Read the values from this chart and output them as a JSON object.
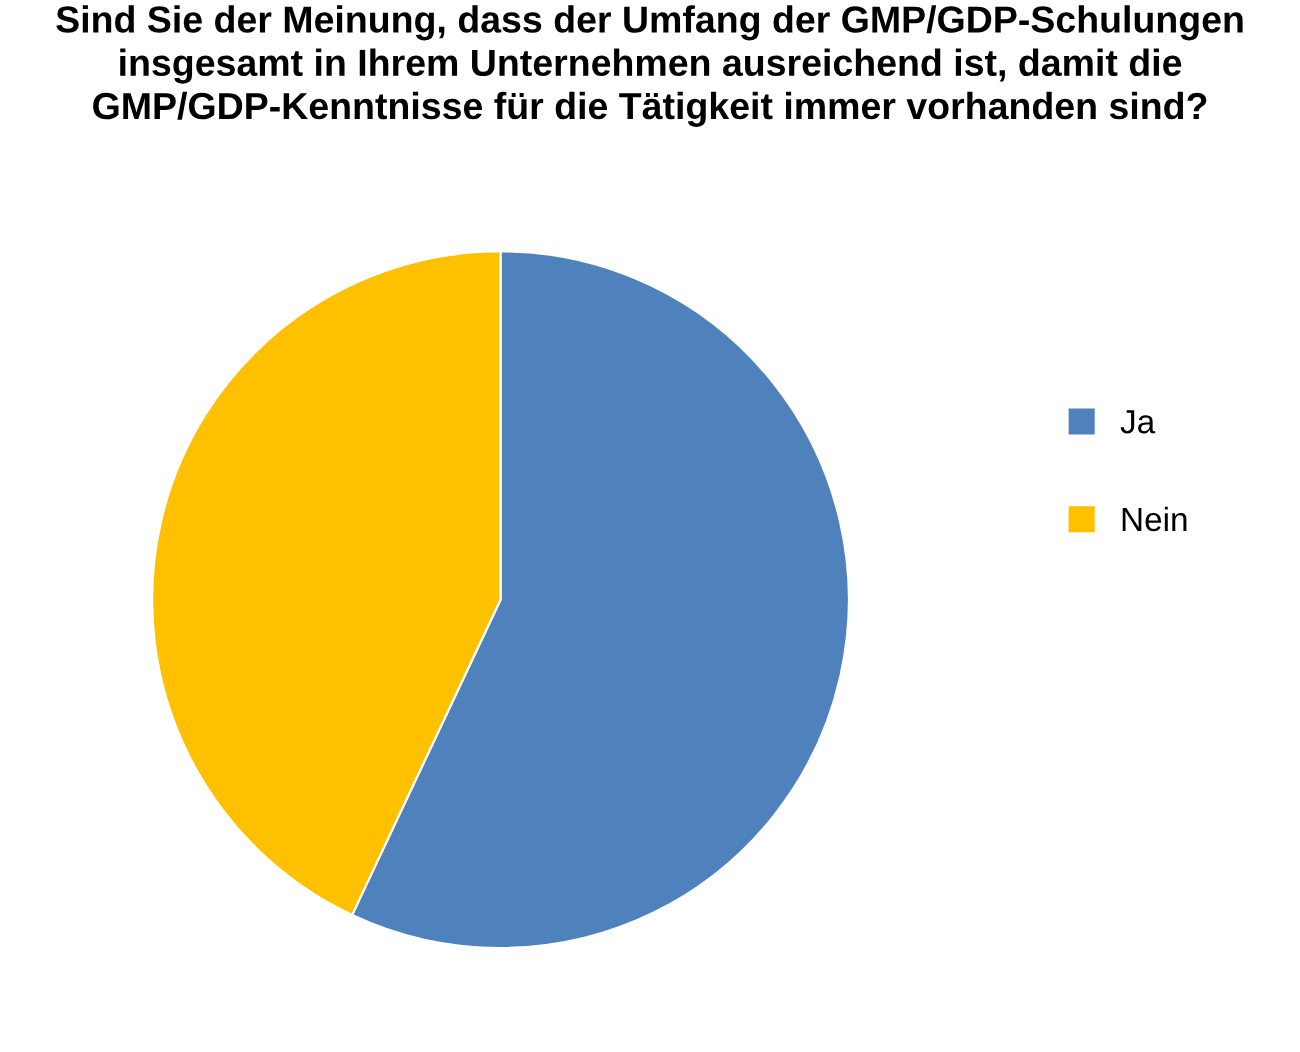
{
  "chart_data": {
    "type": "pie",
    "title": "Sind Sie der Meinung, dass der Umfang der GMP/GDP-Schulungen\ninsgesamt in Ihrem Unternehmen ausreichend ist, damit die\nGMP/GDP-Kenntnisse für die Tätigkeit immer vorhanden sind?",
    "categories": [
      "Ja",
      "Nein"
    ],
    "values": [
      57,
      43
    ],
    "colors": [
      "#4f81bd",
      "#ffc000"
    ],
    "legend": "right"
  }
}
